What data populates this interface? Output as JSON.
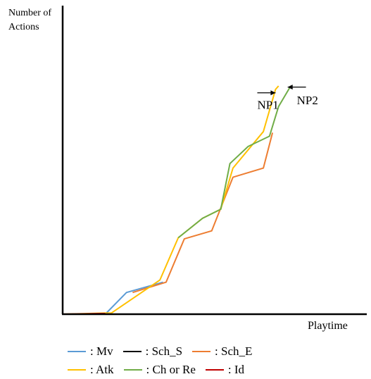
{
  "chart_data": {
    "type": "line",
    "ylabel_lines": [
      "Number of",
      "Actions"
    ],
    "xlabel": "Playtime",
    "xlim": [
      0,
      100
    ],
    "ylim": [
      0,
      100
    ],
    "grid": false,
    "legend_position": "bottom",
    "series": [
      {
        "name": "Mv",
        "color": "#5b9bd5",
        "points": [
          [
            0,
            0
          ],
          [
            14,
            0
          ],
          [
            21,
            9.5
          ],
          [
            33,
            14
          ]
        ]
      },
      {
        "name": "Sch_S",
        "color": "#000000",
        "points": []
      },
      {
        "name": "Sch_E",
        "color": "#ed7d31",
        "points": [
          [
            23,
            9.5
          ],
          [
            34,
            14
          ],
          [
            40,
            33
          ],
          [
            49,
            36.5
          ],
          [
            56,
            60
          ],
          [
            66,
            64
          ],
          [
            69,
            79.5
          ]
        ]
      },
      {
        "name": "Atk",
        "color": "#ffc000",
        "points": [
          [
            0,
            0
          ],
          [
            14,
            0.5
          ],
          [
            16,
            0.5
          ],
          [
            32,
            15
          ],
          [
            38,
            33.5
          ],
          [
            46,
            42
          ],
          [
            52,
            46
          ],
          [
            56,
            64
          ],
          [
            66,
            80
          ],
          [
            70,
            98.5
          ],
          [
            71,
            100
          ]
        ]
      },
      {
        "name": "Ch or Re",
        "color": "#70ad47",
        "points": [
          [
            38,
            33.5
          ],
          [
            46,
            42
          ],
          [
            52,
            46
          ],
          [
            55,
            66
          ],
          [
            61,
            73.5
          ],
          [
            68,
            78
          ],
          [
            71,
            91
          ],
          [
            75,
            100
          ]
        ]
      },
      {
        "name": "Id",
        "color": "#c00000",
        "points": [
          [
            0,
            0
          ],
          [
            14,
            0.3
          ]
        ]
      }
    ],
    "annotations": [
      {
        "text": "NP1",
        "x": 64,
        "y": 90
      },
      {
        "text": "NP2",
        "x": 77,
        "y": 92
      }
    ],
    "arrows": [
      {
        "from": [
          64,
          97
        ],
        "to": [
          70,
          97
        ]
      },
      {
        "from": [
          80,
          99.5
        ],
        "to": [
          74,
          99.5
        ]
      }
    ]
  },
  "legend": {
    "rows": [
      [
        {
          "label": ": Mv",
          "color": "#5b9bd5"
        },
        {
          "label": ": Sch_S",
          "color": "#000000"
        },
        {
          "label": ": Sch_E",
          "color": "#ed7d31"
        }
      ],
      [
        {
          "label": ": Atk",
          "color": "#ffc000"
        },
        {
          "label": ": Ch or Re",
          "color": "#70ad47"
        },
        {
          "label": ": Id",
          "color": "#c00000"
        }
      ]
    ]
  }
}
